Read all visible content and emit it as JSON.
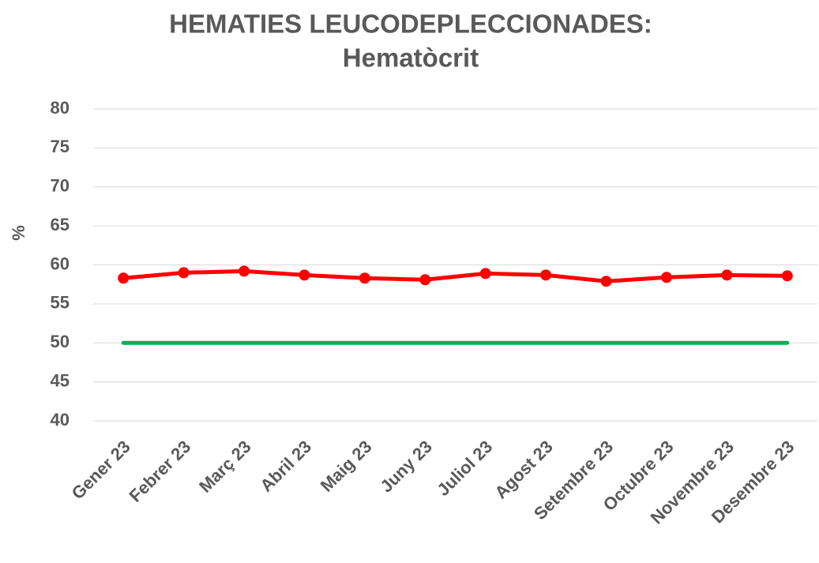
{
  "chart_data": {
    "type": "line",
    "title": "HEMATIES LEUCODEPLECCIONADES:",
    "subtitle": "Hematòcrit",
    "y_label": "%",
    "categories": [
      "Gener 23",
      "Febrer 23",
      "Març 23",
      "Abril 23",
      "Maig 23",
      "Juny 23",
      "Juliol 23",
      "Agost 23",
      "Setembre 23",
      "Octubre 23",
      "Novembre 23",
      "Desembre 23"
    ],
    "series": [
      {
        "color": "#ff0000",
        "markers": true,
        "values": [
          58.3,
          59.0,
          59.2,
          58.7,
          58.3,
          58.1,
          58.9,
          58.7,
          57.9,
          58.4,
          58.7,
          58.6
        ]
      },
      {
        "color": "#00b050",
        "markers": false,
        "values": [
          50,
          50,
          50,
          50,
          50,
          50,
          50,
          50,
          50,
          50,
          50,
          50
        ]
      }
    ],
    "ylim": [
      40,
      80
    ],
    "yticks": [
      40,
      45,
      50,
      55,
      60,
      65,
      70,
      75,
      80
    ],
    "grid": true
  }
}
